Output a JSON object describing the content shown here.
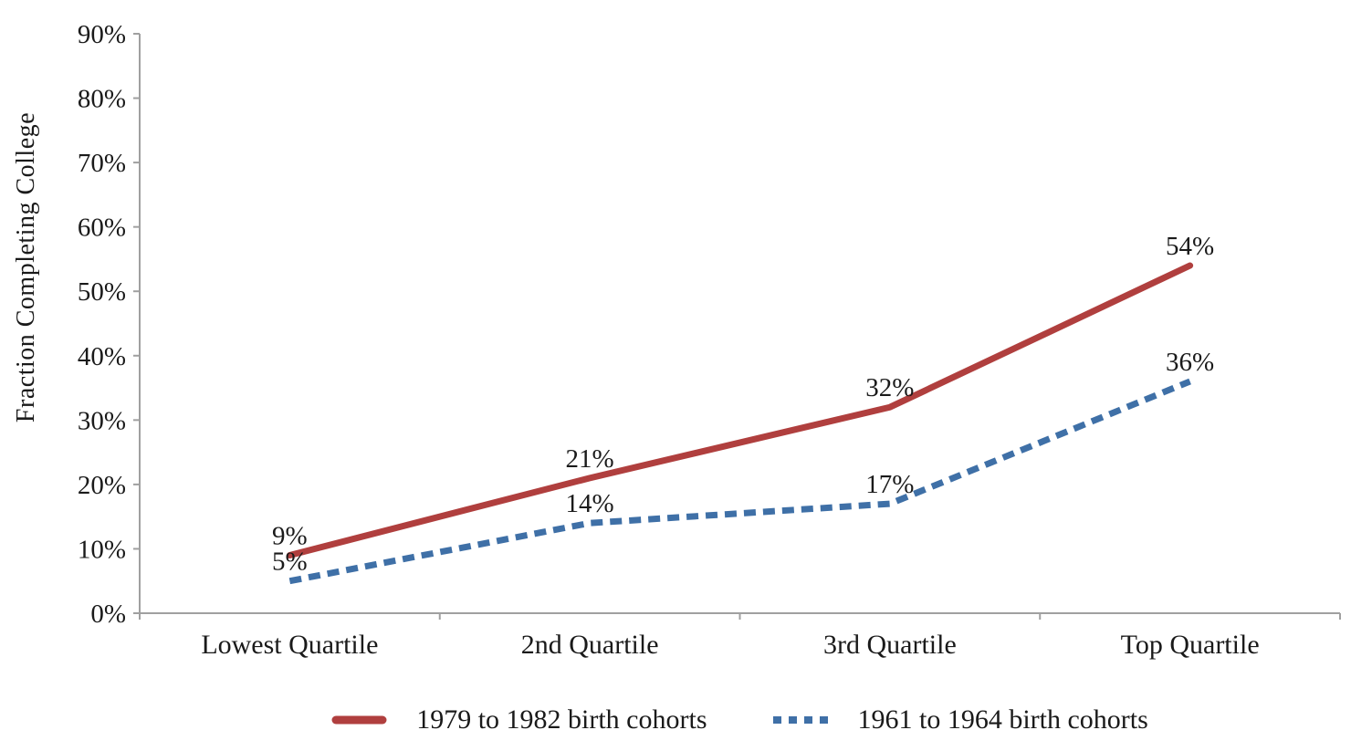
{
  "chart_data": {
    "type": "line",
    "title": "",
    "xlabel": "",
    "ylabel": "Fraction Completing College",
    "categories": [
      "Lowest Quartile",
      "2nd Quartile",
      "3rd Quartile",
      "Top Quartile"
    ],
    "series": [
      {
        "name": "1979 to 1982 birth cohorts",
        "values": [
          9,
          21,
          32,
          54
        ],
        "point_labels": [
          "9%",
          "21%",
          "32%",
          "54%"
        ],
        "color": "#B03F3E",
        "line_style": "solid"
      },
      {
        "name": "1961 to 1964 birth cohorts",
        "values": [
          5,
          14,
          17,
          36
        ],
        "point_labels": [
          "5%",
          "14%",
          "17%",
          "36%"
        ],
        "color": "#3F70A7",
        "line_style": "dashed"
      }
    ],
    "ylim": [
      0,
      90
    ],
    "ytick_step": 10,
    "ytick_labels": [
      "0%",
      "10%",
      "20%",
      "30%",
      "40%",
      "50%",
      "60%",
      "70%",
      "80%",
      "90%"
    ],
    "grid": false,
    "legend_position": "bottom",
    "axis_color": "#A0A0A0",
    "text_color": "#1A1A1A",
    "background_color": "#FFFFFF"
  }
}
